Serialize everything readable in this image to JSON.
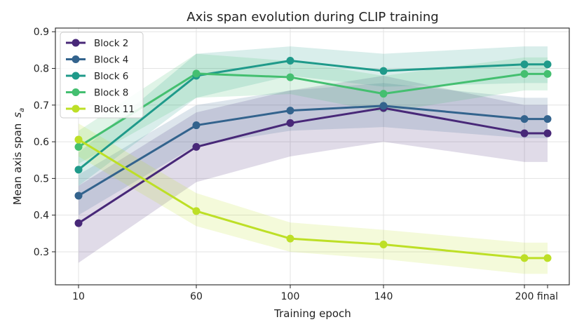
{
  "chart_data": {
    "type": "line",
    "title": "Axis span evolution during CLIP training",
    "xlabel": "Training epoch",
    "ylabel": "Mean axis span",
    "ylabel_symbol": "s",
    "ylabel_subscript": "a",
    "x_ticks": [
      "10",
      "60",
      "100",
      "140",
      "200",
      "final"
    ],
    "ylim": [
      0.21,
      0.91
    ],
    "y_ticks": [
      "0.3",
      "0.4",
      "0.5",
      "0.6",
      "0.7",
      "0.8",
      "0.9"
    ],
    "grid": true,
    "legend_position": "upper-left",
    "series": [
      {
        "name": "Block 2",
        "color": "#482878",
        "values": [
          0.378,
          0.586,
          0.651,
          0.692,
          0.623,
          0.623
        ],
        "band_low": [
          0.27,
          0.49,
          0.56,
          0.6,
          0.545,
          0.545
        ],
        "band_high": [
          0.48,
          0.68,
          0.74,
          0.78,
          0.7,
          0.7
        ]
      },
      {
        "name": "Block 4",
        "color": "#33638d",
        "values": [
          0.453,
          0.645,
          0.685,
          0.698,
          0.662,
          0.662
        ],
        "band_low": [
          0.4,
          0.59,
          0.63,
          0.64,
          0.61,
          0.61
        ],
        "band_high": [
          0.51,
          0.7,
          0.74,
          0.76,
          0.72,
          0.72
        ]
      },
      {
        "name": "Block 6",
        "color": "#1f9a8a",
        "values": [
          0.524,
          0.78,
          0.821,
          0.793,
          0.811,
          0.811
        ],
        "band_low": [
          0.48,
          0.72,
          0.78,
          0.75,
          0.76,
          0.76
        ],
        "band_high": [
          0.57,
          0.84,
          0.86,
          0.84,
          0.86,
          0.86
        ]
      },
      {
        "name": "Block 8",
        "color": "#44bf70",
        "values": [
          0.586,
          0.786,
          0.776,
          0.731,
          0.785,
          0.785
        ],
        "band_low": [
          0.54,
          0.72,
          0.73,
          0.68,
          0.74,
          0.74
        ],
        "band_high": [
          0.63,
          0.84,
          0.82,
          0.78,
          0.83,
          0.83
        ]
      },
      {
        "name": "Block 11",
        "color": "#bddf26",
        "values": [
          0.606,
          0.411,
          0.336,
          0.32,
          0.283,
          0.283
        ],
        "band_low": [
          0.56,
          0.37,
          0.3,
          0.28,
          0.24,
          0.24
        ],
        "band_high": [
          0.65,
          0.46,
          0.38,
          0.36,
          0.325,
          0.325
        ]
      }
    ]
  }
}
